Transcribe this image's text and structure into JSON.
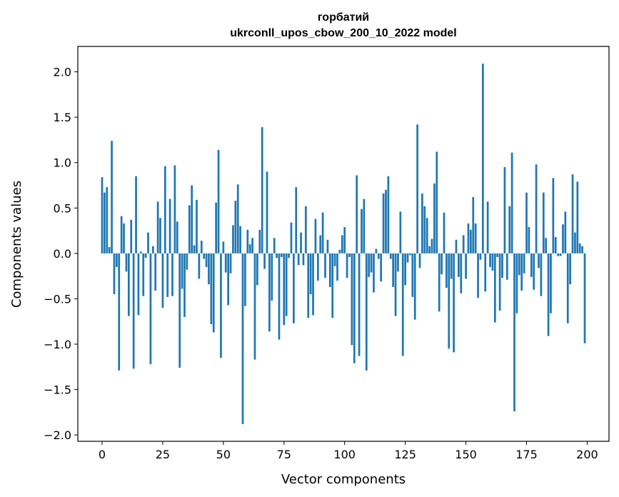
{
  "chart_data": {
    "type": "bar",
    "title_line1": "горбатий",
    "title_line2": "ukrconll_upos_cbow_200_10_2022 model",
    "xlabel": "Vector components",
    "ylabel": "Components values",
    "xlim": [
      -10,
      209
    ],
    "ylim": [
      -2.07,
      2.28
    ],
    "xticks": [
      0,
      25,
      50,
      75,
      100,
      125,
      150,
      175,
      200
    ],
    "yticks": [
      -2.0,
      -1.5,
      -1.0,
      -0.5,
      0.0,
      0.5,
      1.0,
      1.5,
      2.0
    ],
    "ytick_labels": [
      "−2.0",
      "−1.5",
      "−1.0",
      "−0.5",
      "0.0",
      "0.5",
      "1.0",
      "1.5",
      "2.0"
    ],
    "bar_color": "#1f77b4",
    "values": [
      0.84,
      0.67,
      0.73,
      0.07,
      1.24,
      -0.45,
      -0.15,
      -1.29,
      0.41,
      0.33,
      -0.2,
      -0.69,
      0.37,
      -1.27,
      0.85,
      -0.68,
      0.02,
      -0.47,
      -0.05,
      0.23,
      -1.22,
      0.08,
      -0.41,
      0.57,
      0.39,
      -0.6,
      0.96,
      -0.48,
      0.6,
      -0.47,
      0.97,
      0.35,
      -1.26,
      -0.39,
      -0.7,
      -0.18,
      0.53,
      0.75,
      0.09,
      0.59,
      -0.28,
      0.14,
      -0.06,
      -0.15,
      -0.34,
      -0.78,
      -0.87,
      0.56,
      1.14,
      -1.15,
      0.13,
      -0.21,
      -0.57,
      -0.22,
      0.31,
      0.58,
      0.76,
      0.3,
      -1.88,
      -0.58,
      0.26,
      0.1,
      0.17,
      -1.17,
      -0.35,
      0.26,
      1.39,
      -0.17,
      0.9,
      -0.86,
      -0.52,
      0.17,
      -0.05,
      -0.95,
      -0.04,
      -0.79,
      -0.69,
      -0.05,
      0.34,
      -0.77,
      0.73,
      -0.13,
      0.23,
      -0.13,
      0.52,
      -0.71,
      -0.45,
      -0.68,
      0.38,
      -0.3,
      0.2,
      0.45,
      -0.27,
      0.15,
      -0.37,
      -0.71,
      -0.14,
      -0.3,
      0.04,
      0.2,
      0.29,
      -0.27,
      -0.04,
      -1.01,
      -1.21,
      0.86,
      -1.13,
      0.49,
      0.6,
      -1.29,
      -0.26,
      -0.21,
      -0.43,
      0.05,
      -0.06,
      -0.31,
      0.66,
      0.7,
      0.85,
      -0.06,
      -0.37,
      -0.69,
      -0.2,
      0.46,
      -1.13,
      -0.35,
      -0.1,
      -0.02,
      -0.48,
      -0.73,
      1.42,
      -0.16,
      0.66,
      0.52,
      0.39,
      0.08,
      0.16,
      0.77,
      1.12,
      -0.64,
      -0.23,
      0.45,
      -0.38,
      -1.05,
      -0.28,
      -1.09,
      0.15,
      -0.26,
      -0.44,
      0.2,
      -0.28,
      0.33,
      0.26,
      0.62,
      0.33,
      -0.49,
      -0.07,
      2.09,
      -0.42,
      0.57,
      -0.15,
      -0.19,
      -0.76,
      -0.04,
      -0.63,
      -0.27,
      0.95,
      -0.29,
      0.52,
      1.11,
      -1.74,
      -0.66,
      -0.24,
      -0.41,
      -0.22,
      0.67,
      0.29,
      -0.26,
      -0.4,
      0.98,
      -0.16,
      -0.47,
      0.67,
      0.17,
      -0.91,
      -0.66,
      0.83,
      0.18,
      -0.03,
      -0.03,
      0.32,
      0.46,
      -0.77,
      -0.34,
      0.87,
      0.23,
      0.79,
      0.11,
      0.08,
      -0.99
    ]
  }
}
